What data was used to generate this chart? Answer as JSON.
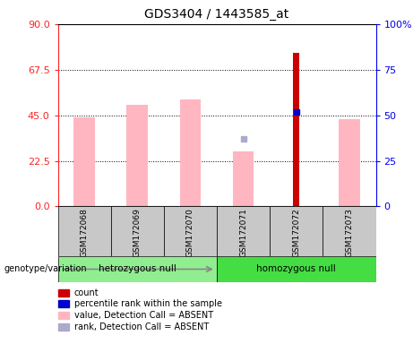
{
  "title": "GDS3404 / 1443585_at",
  "samples": [
    "GSM172068",
    "GSM172069",
    "GSM172070",
    "GSM172071",
    "GSM172072",
    "GSM172073"
  ],
  "groups_order": [
    "hetrozygous null",
    "homozygous null"
  ],
  "groups": {
    "hetrozygous null": [
      0,
      1,
      2
    ],
    "homozygous null": [
      3,
      4,
      5
    ]
  },
  "group_colors": {
    "hetrozygous null": "#90EE90",
    "homozygous null": "#44DD44"
  },
  "ylim_left": [
    0,
    90
  ],
  "ylim_right": [
    0,
    100
  ],
  "yticks_left": [
    0,
    22.5,
    45,
    67.5,
    90
  ],
  "yticks_right": [
    0,
    25,
    50,
    75,
    100
  ],
  "pink_bars": [
    44,
    50,
    53,
    27,
    0,
    43
  ],
  "red_bars": [
    0,
    0,
    0,
    0,
    76,
    0
  ],
  "blue_squares_right": [
    null,
    null,
    null,
    null,
    52,
    null
  ],
  "light_blue_squares_right": [
    null,
    null,
    null,
    37,
    null,
    null
  ],
  "left_axis_color": "#FF2222",
  "right_axis_color": "#0000EE",
  "background_color": "#FFFFFF",
  "legend_items": [
    {
      "color": "#CC0000",
      "label": "count"
    },
    {
      "color": "#0000CC",
      "label": "percentile rank within the sample"
    },
    {
      "color": "#FFB6C1",
      "label": "value, Detection Call = ABSENT"
    },
    {
      "color": "#AAAACC",
      "label": "rank, Detection Call = ABSENT"
    }
  ],
  "genotype_label": "genotype/variation",
  "bar_width": 0.4,
  "red_bar_width": 0.12
}
